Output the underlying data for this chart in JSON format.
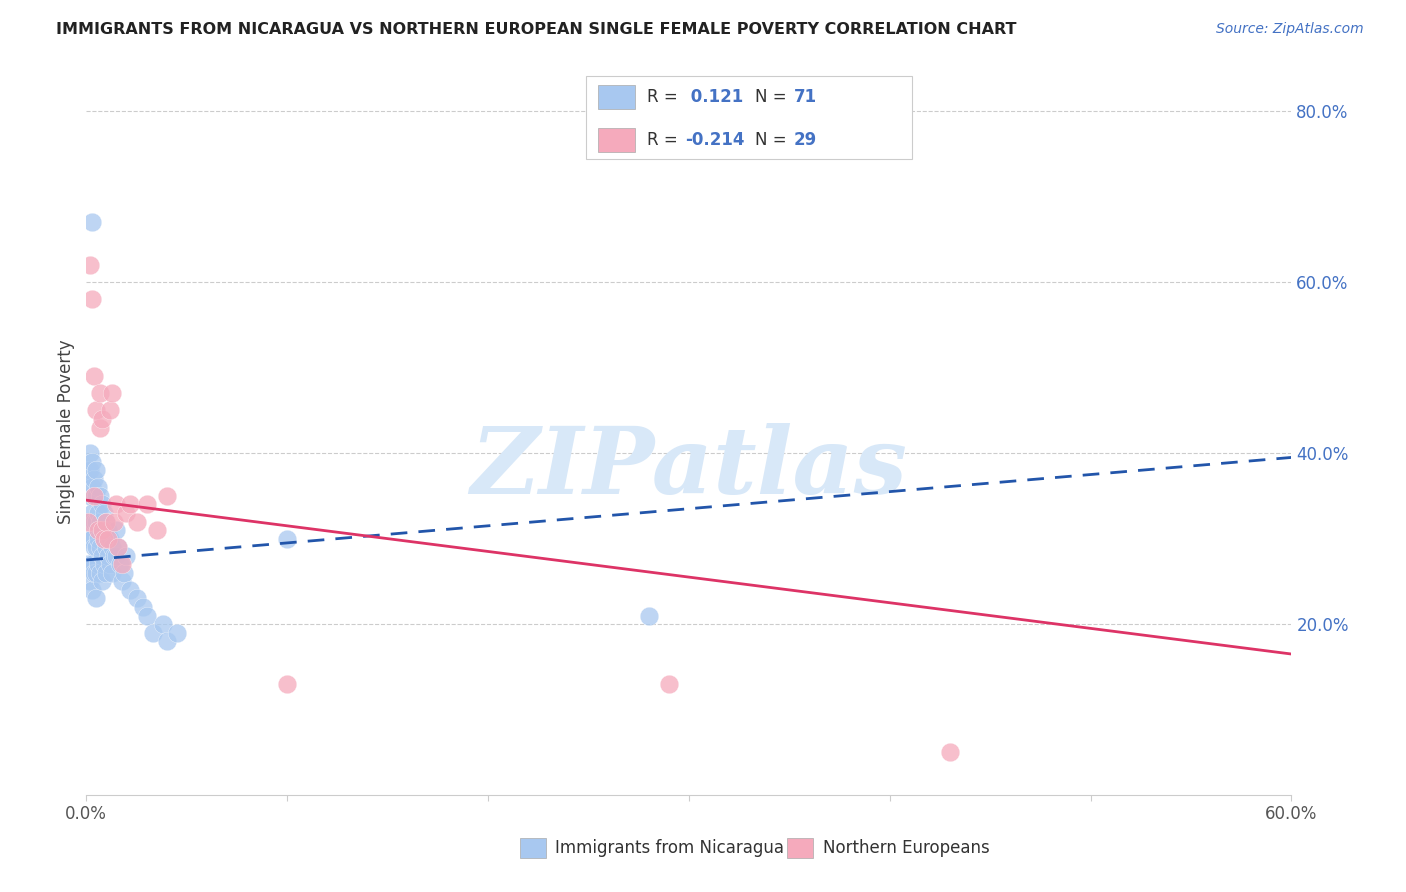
{
  "title": "IMMIGRANTS FROM NICARAGUA VS NORTHERN EUROPEAN SINGLE FEMALE POVERTY CORRELATION CHART",
  "source": "Source: ZipAtlas.com",
  "ylabel": "Single Female Poverty",
  "xlim": [
    0,
    0.6
  ],
  "ylim": [
    0,
    0.85
  ],
  "y_ticks": [
    0.2,
    0.4,
    0.6,
    0.8
  ],
  "y_tick_labels": [
    "20.0%",
    "40.0%",
    "60.0%",
    "80.0%"
  ],
  "blue_R": 0.121,
  "blue_N": 71,
  "pink_R": -0.214,
  "pink_N": 29,
  "blue_color": "#A8C8F0",
  "pink_color": "#F5AABC",
  "blue_line_color": "#2255AA",
  "pink_line_color": "#DD3366",
  "watermark_color": "#D8E8F8",
  "blue_scatter_x": [
    0.001,
    0.001,
    0.001,
    0.001,
    0.002,
    0.002,
    0.002,
    0.002,
    0.002,
    0.002,
    0.002,
    0.003,
    0.003,
    0.003,
    0.003,
    0.003,
    0.003,
    0.004,
    0.004,
    0.004,
    0.004,
    0.004,
    0.005,
    0.005,
    0.005,
    0.005,
    0.005,
    0.005,
    0.006,
    0.006,
    0.006,
    0.006,
    0.007,
    0.007,
    0.007,
    0.007,
    0.008,
    0.008,
    0.008,
    0.008,
    0.009,
    0.009,
    0.009,
    0.01,
    0.01,
    0.01,
    0.011,
    0.011,
    0.012,
    0.012,
    0.013,
    0.013,
    0.014,
    0.015,
    0.015,
    0.016,
    0.017,
    0.018,
    0.019,
    0.02,
    0.022,
    0.025,
    0.028,
    0.03,
    0.033,
    0.038,
    0.04,
    0.045,
    0.1,
    0.28,
    0.003
  ],
  "blue_scatter_y": [
    0.38,
    0.36,
    0.3,
    0.27,
    0.4,
    0.38,
    0.35,
    0.32,
    0.3,
    0.27,
    0.25,
    0.39,
    0.36,
    0.33,
    0.3,
    0.27,
    0.24,
    0.37,
    0.35,
    0.32,
    0.29,
    0.26,
    0.38,
    0.35,
    0.32,
    0.29,
    0.26,
    0.23,
    0.36,
    0.33,
    0.3,
    0.27,
    0.35,
    0.32,
    0.29,
    0.26,
    0.34,
    0.31,
    0.28,
    0.25,
    0.33,
    0.3,
    0.27,
    0.32,
    0.29,
    0.26,
    0.31,
    0.28,
    0.3,
    0.27,
    0.29,
    0.26,
    0.28,
    0.31,
    0.28,
    0.29,
    0.27,
    0.25,
    0.26,
    0.28,
    0.24,
    0.23,
    0.22,
    0.21,
    0.19,
    0.2,
    0.18,
    0.19,
    0.3,
    0.21,
    0.67
  ],
  "pink_scatter_x": [
    0.001,
    0.002,
    0.003,
    0.004,
    0.004,
    0.005,
    0.006,
    0.007,
    0.007,
    0.008,
    0.008,
    0.009,
    0.01,
    0.011,
    0.012,
    0.013,
    0.014,
    0.015,
    0.016,
    0.018,
    0.02,
    0.022,
    0.025,
    0.03,
    0.035,
    0.04,
    0.1,
    0.29,
    0.43
  ],
  "pink_scatter_y": [
    0.32,
    0.62,
    0.58,
    0.49,
    0.35,
    0.45,
    0.31,
    0.47,
    0.43,
    0.44,
    0.31,
    0.3,
    0.32,
    0.3,
    0.45,
    0.47,
    0.32,
    0.34,
    0.29,
    0.27,
    0.33,
    0.34,
    0.32,
    0.34,
    0.31,
    0.35,
    0.13,
    0.13,
    0.05
  ],
  "blue_line_x": [
    0.0,
    0.6
  ],
  "blue_line_y": [
    0.275,
    0.395
  ],
  "pink_line_x": [
    0.0,
    0.6
  ],
  "pink_line_y": [
    0.345,
    0.165
  ]
}
